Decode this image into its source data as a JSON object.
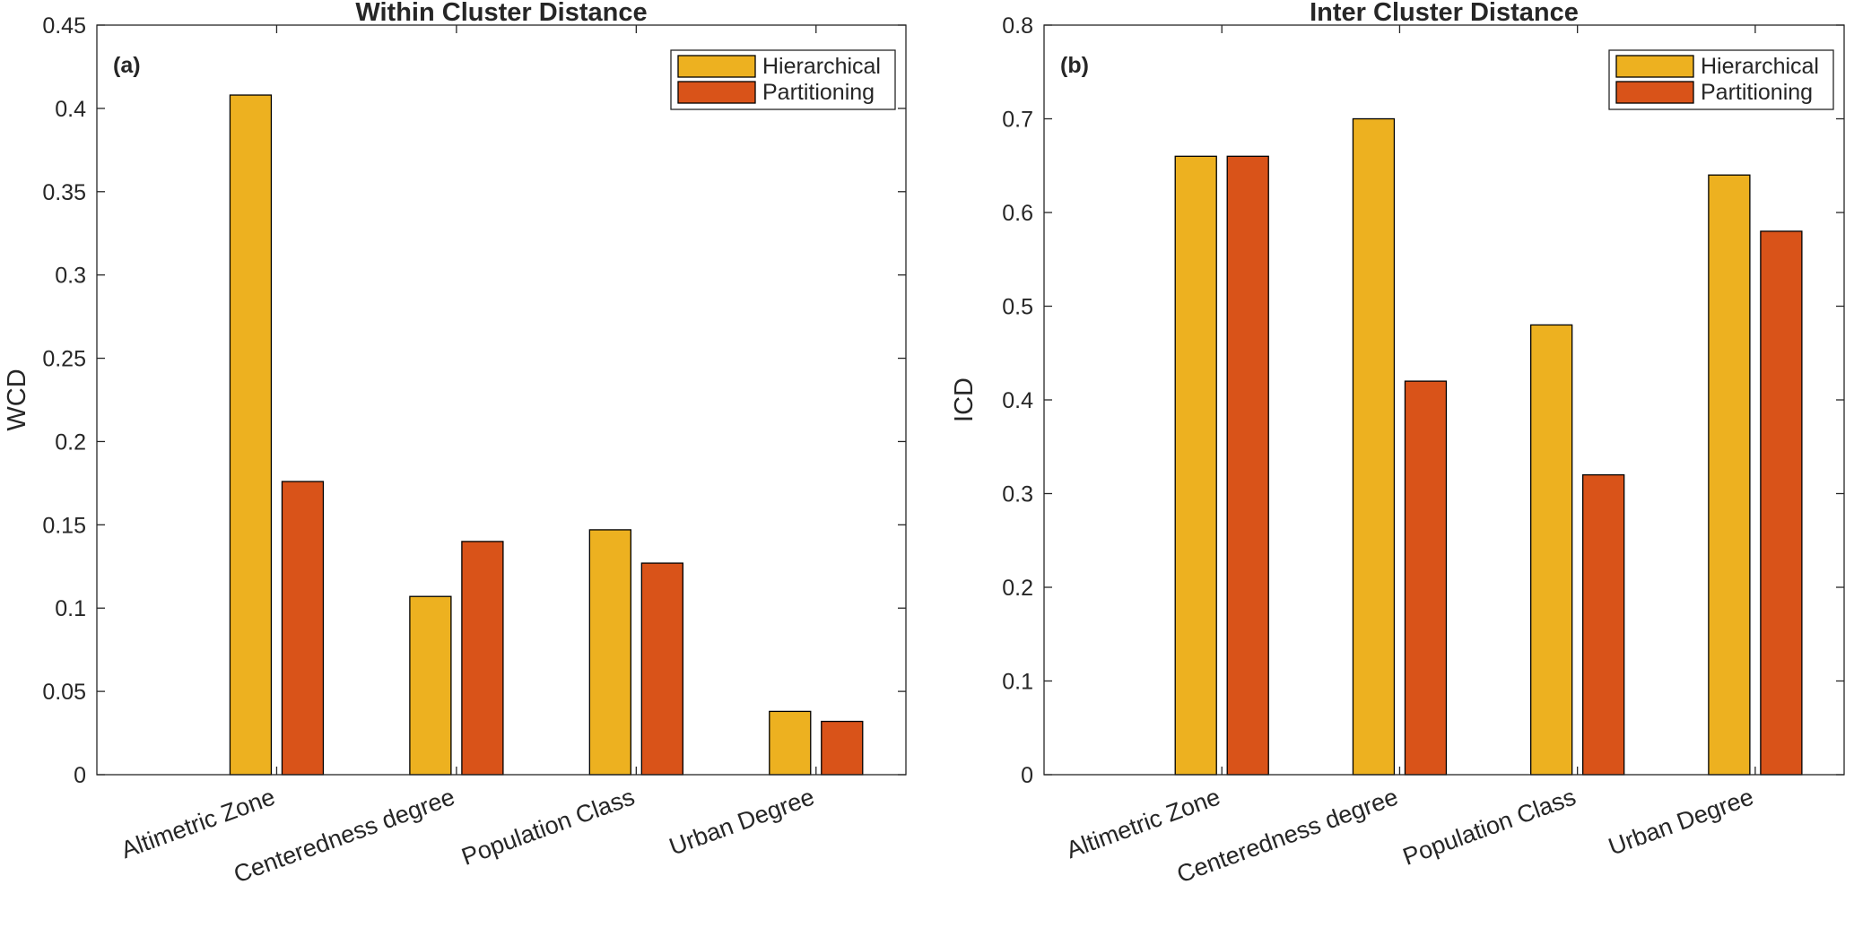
{
  "chart_data": [
    {
      "type": "bar",
      "panel_label": "(a)",
      "title": "Within Cluster Distance",
      "xlabel": "",
      "ylabel": "WCD",
      "ylim": [
        0,
        0.45
      ],
      "yticks": [
        0,
        0.05,
        0.1,
        0.15,
        0.2,
        0.25,
        0.3,
        0.35,
        0.4,
        0.45
      ],
      "ytick_labels": [
        "0",
        "0.05",
        "0.1",
        "0.15",
        "0.2",
        "0.25",
        "0.3",
        "0.35",
        "0.4",
        "0.45"
      ],
      "categories": [
        "Altimetric Zone",
        "Centeredness degree",
        "Population Class",
        "Urban Degree"
      ],
      "series": [
        {
          "name": "Hierarchical",
          "values": [
            0.408,
            0.107,
            0.147,
            0.038
          ]
        },
        {
          "name": "Partitioning",
          "values": [
            0.176,
            0.14,
            0.127,
            0.032
          ]
        }
      ],
      "legend_position": "top-right",
      "grid": false
    },
    {
      "type": "bar",
      "panel_label": "(b)",
      "title": "Inter Cluster Distance",
      "xlabel": "",
      "ylabel": "ICD",
      "ylim": [
        0,
        0.8
      ],
      "yticks": [
        0,
        0.1,
        0.2,
        0.3,
        0.4,
        0.5,
        0.6,
        0.7,
        0.8
      ],
      "ytick_labels": [
        "0",
        "0.1",
        "0.2",
        "0.3",
        "0.4",
        "0.5",
        "0.6",
        "0.7",
        "0.8"
      ],
      "categories": [
        "Altimetric Zone",
        "Centeredness degree",
        "Population Class",
        "Urban Degree"
      ],
      "series": [
        {
          "name": "Hierarchical",
          "values": [
            0.66,
            0.7,
            0.48,
            0.64
          ]
        },
        {
          "name": "Partitioning",
          "values": [
            0.66,
            0.42,
            0.32,
            0.58
          ]
        }
      ],
      "legend_position": "top-right",
      "grid": false
    }
  ],
  "colors": {
    "series": [
      "#EDB120",
      "#D95319"
    ],
    "axis": "#262626",
    "bar_edge": "#000000"
  }
}
